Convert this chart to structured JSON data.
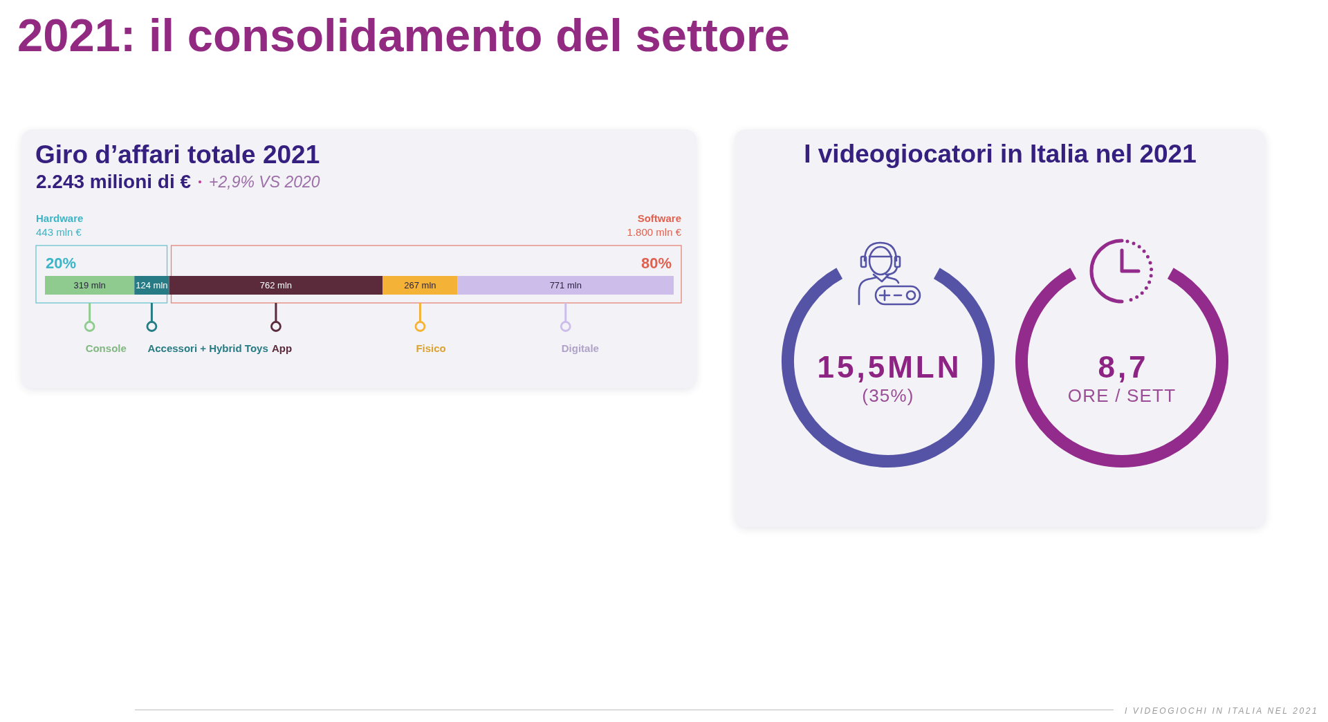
{
  "chart_data": [
    {
      "type": "bar",
      "orientation": "horizontal",
      "stacked": true,
      "title": "Giro d’affari totale 2021",
      "subtitle": "2.243 milioni di €",
      "categories": [
        null
      ],
      "series": [
        {
          "name": "Console",
          "color": "#8fcb8e",
          "values": [
            319
          ],
          "value_labels": [
            "319 mln"
          ]
        },
        {
          "name": "Accessori + Hybrid Toys",
          "color": "#267b84",
          "values": [
            124
          ],
          "value_labels": [
            "124 mln"
          ]
        },
        {
          "name": "App",
          "color": "#5b2a3b",
          "values": [
            762
          ],
          "value_labels": [
            "762 mln"
          ]
        },
        {
          "name": "Fisico",
          "color": "#f4b336",
          "values": [
            267
          ],
          "value_labels": [
            "267 mln"
          ]
        },
        {
          "name": "Digitale",
          "color": "#cdbdea",
          "values": [
            771
          ],
          "value_labels": [
            "771 mln"
          ]
        }
      ],
      "annotations": [
        "2021: il consolidamento del settore",
        "+2,9% VS 2020",
        "Hardware",
        "443 mln €",
        "20%",
        "Software",
        "1.800 mln €",
        "80%",
        "I VIDEOGIOCHI IN ITALIA NEL 2021"
      ],
      "legend": "bottom",
      "tick_labels": false
    },
    {
      "type": "other",
      "title": "I videogiocatori in Italia nel 2021",
      "annotations": [
        "15,5MLN",
        "(35%)",
        "8,7",
        "ORE / SETT"
      ]
    }
  ]
}
